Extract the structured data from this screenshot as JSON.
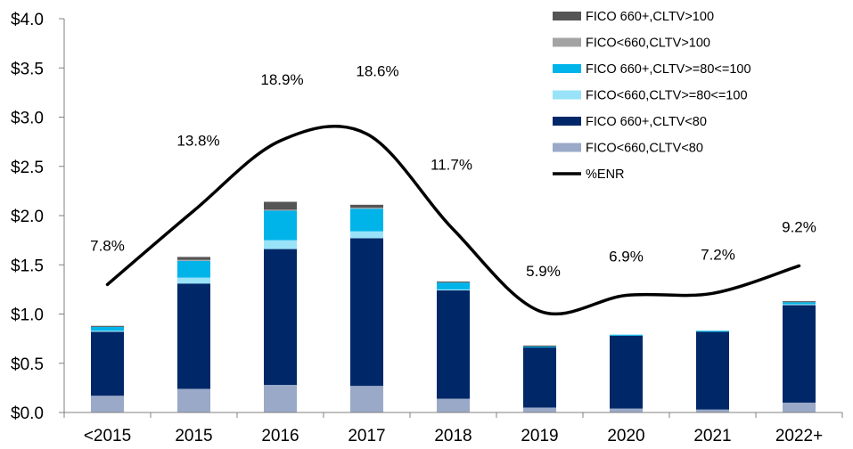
{
  "chart_data": {
    "type": "bar",
    "stacked": true,
    "categories": [
      "<2015",
      "2015",
      "2016",
      "2017",
      "2018",
      "2019",
      "2020",
      "2021",
      "2022+"
    ],
    "ylim": [
      0,
      4.0
    ],
    "yticks": [
      "$0.0",
      "$0.5",
      "$1.0",
      "$1.5",
      "$2.0",
      "$2.5",
      "$3.0",
      "$3.5",
      "$4.0"
    ],
    "yticks_values": [
      0,
      0.5,
      1.0,
      1.5,
      2.0,
      2.5,
      3.0,
      3.5,
      4.0
    ],
    "series": [
      {
        "name": "FICO<660,CLTV<80",
        "color": "#9aa9c8",
        "values": [
          0.17,
          0.24,
          0.28,
          0.27,
          0.14,
          0.05,
          0.04,
          0.03,
          0.1
        ]
      },
      {
        "name": "FICO 660+,CLTV<80",
        "color": "#002868",
        "values": [
          0.65,
          1.07,
          1.38,
          1.5,
          1.1,
          0.61,
          0.74,
          0.79,
          0.99
        ]
      },
      {
        "name": "FICO<660,CLTV>=80<=100",
        "color": "#99e3f8",
        "values": [
          0.01,
          0.06,
          0.09,
          0.07,
          0.01,
          0.0,
          0.0,
          0.0,
          0.01
        ]
      },
      {
        "name": "FICO 660+,CLTV>=80<=100",
        "color": "#00b4ea",
        "values": [
          0.04,
          0.17,
          0.3,
          0.23,
          0.07,
          0.01,
          0.01,
          0.01,
          0.02
        ]
      },
      {
        "name": "FICO<660,CLTV>100",
        "color": "#a3a3a3",
        "values": [
          0.0,
          0.01,
          0.01,
          0.01,
          0.0,
          0.0,
          0.0,
          0.0,
          0.0
        ]
      },
      {
        "name": "FICO 660+,CLTV>100",
        "color": "#555555",
        "values": [
          0.01,
          0.03,
          0.08,
          0.03,
          0.01,
          0.01,
          0.0,
          0.0,
          0.01
        ]
      }
    ],
    "line": {
      "name": "%ENR",
      "color": "#000000",
      "values": [
        1.3,
        2.05,
        2.76,
        2.83,
        1.86,
        1.03,
        1.19,
        1.21,
        1.49
      ],
      "labels": [
        "7.8%",
        "13.8%",
        "18.9%",
        "18.6%",
        "11.7%",
        "5.9%",
        "6.9%",
        "7.2%",
        "9.2%"
      ]
    },
    "legend_position": "top-right"
  }
}
